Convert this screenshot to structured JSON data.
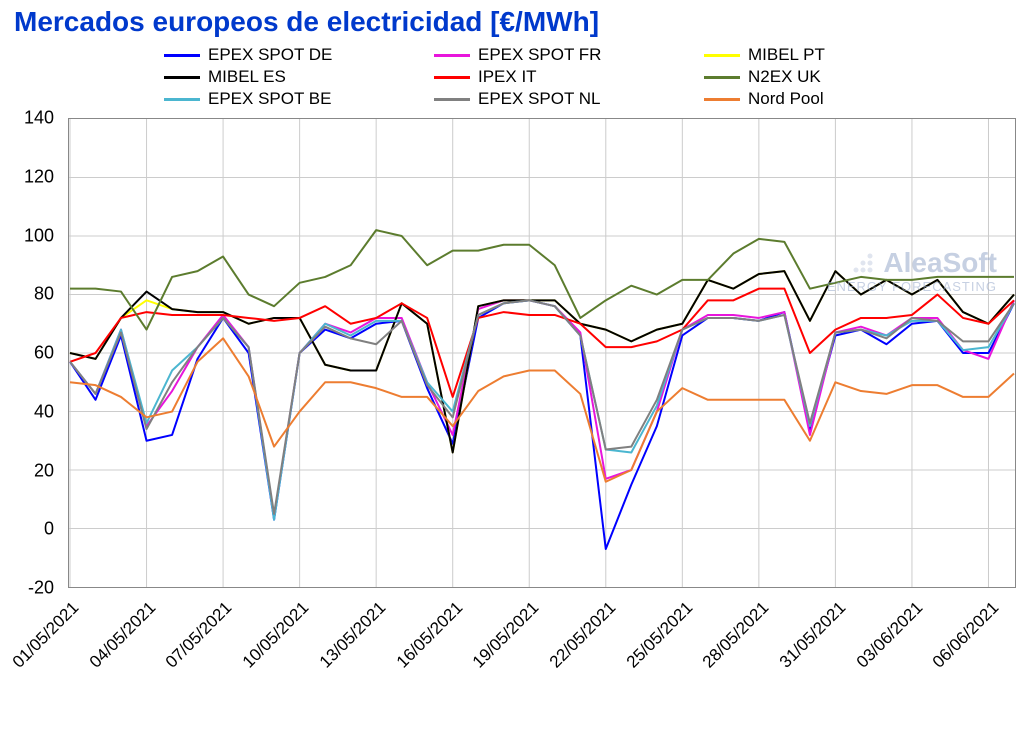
{
  "title": "Mercados europeos de electricidad [€/MWh]",
  "chart": {
    "type": "line",
    "background_color": "#ffffff",
    "grid_color": "#cccccc",
    "border_color": "#888888",
    "title_color": "#0039cc",
    "title_fontsize": 28,
    "label_fontsize": 18,
    "legend_fontsize": 17,
    "line_width": 2,
    "ylim": [
      -20,
      140
    ],
    "ytick_step": 20,
    "yticks": [
      -20,
      0,
      20,
      40,
      60,
      80,
      100,
      120,
      140
    ],
    "x_dates": [
      "01/05/2021",
      "02/05/2021",
      "03/05/2021",
      "04/05/2021",
      "05/05/2021",
      "06/05/2021",
      "07/05/2021",
      "08/05/2021",
      "09/05/2021",
      "10/05/2021",
      "11/05/2021",
      "12/05/2021",
      "13/05/2021",
      "14/05/2021",
      "15/05/2021",
      "16/05/2021",
      "17/05/2021",
      "18/05/2021",
      "19/05/2021",
      "20/05/2021",
      "21/05/2021",
      "22/05/2021",
      "23/05/2021",
      "24/05/2021",
      "25/05/2021",
      "26/05/2021",
      "27/05/2021",
      "28/05/2021",
      "29/05/2021",
      "30/05/2021",
      "31/05/2021",
      "01/06/2021",
      "02/06/2021",
      "03/06/2021",
      "04/06/2021",
      "05/06/2021",
      "06/06/2021",
      "07/06/2021"
    ],
    "xticks_idx": [
      0,
      3,
      6,
      9,
      12,
      15,
      18,
      21,
      24,
      27,
      30,
      33,
      36
    ],
    "xticks_labels": [
      "01/05/2021",
      "04/05/2021",
      "07/05/2021",
      "10/05/2021",
      "13/05/2021",
      "16/05/2021",
      "19/05/2021",
      "22/05/2021",
      "25/05/2021",
      "28/05/2021",
      "31/05/2021",
      "03/06/2021",
      "06/06/2021"
    ],
    "series": [
      {
        "name": "EPEX SPOT DE",
        "color": "#0000ff",
        "values": [
          57,
          44,
          66,
          30,
          32,
          58,
          72,
          60,
          3,
          60,
          68,
          65,
          70,
          71,
          48,
          29,
          72,
          77,
          78,
          76,
          66,
          -7,
          15,
          35,
          66,
          72,
          72,
          71,
          74,
          34,
          66,
          68,
          63,
          70,
          71,
          60,
          60,
          77
        ]
      },
      {
        "name": "EPEX SPOT FR",
        "color": "#e815dc",
        "values": [
          57,
          46,
          68,
          35,
          47,
          62,
          73,
          62,
          4,
          60,
          70,
          67,
          72,
          72,
          50,
          32,
          75,
          78,
          78,
          76,
          67,
          17,
          20,
          40,
          68,
          73,
          73,
          72,
          74,
          32,
          67,
          69,
          66,
          72,
          72,
          61,
          58,
          78
        ]
      },
      {
        "name": "MIBEL PT",
        "color": "#ffff00",
        "values": [
          60,
          58,
          72,
          78,
          75,
          74,
          74,
          70,
          72,
          72,
          56,
          54,
          54,
          77,
          70,
          26,
          76,
          78,
          78,
          78,
          70,
          68,
          64,
          68,
          70,
          85,
          82,
          87,
          88,
          71,
          88,
          80,
          85,
          80,
          85,
          74,
          70,
          80
        ]
      },
      {
        "name": "MIBEL ES",
        "color": "#000000",
        "values": [
          60,
          58,
          72,
          81,
          75,
          74,
          74,
          70,
          72,
          72,
          56,
          54,
          54,
          77,
          70,
          26,
          76,
          78,
          78,
          78,
          70,
          68,
          64,
          68,
          70,
          85,
          82,
          87,
          88,
          71,
          88,
          80,
          85,
          80,
          85,
          74,
          70,
          80
        ]
      },
      {
        "name": "IPEX IT",
        "color": "#ff0000",
        "values": [
          57,
          60,
          72,
          74,
          73,
          73,
          73,
          72,
          71,
          72,
          76,
          70,
          72,
          77,
          72,
          45,
          72,
          74,
          73,
          73,
          70,
          62,
          62,
          64,
          68,
          78,
          78,
          82,
          82,
          60,
          68,
          72,
          72,
          73,
          80,
          72,
          70,
          78
        ]
      },
      {
        "name": "N2EX UK",
        "color": "#5c7c2e",
        "values": [
          82,
          82,
          81,
          68,
          86,
          88,
          93,
          80,
          76,
          84,
          86,
          90,
          102,
          100,
          90,
          95,
          95,
          97,
          97,
          90,
          72,
          78,
          83,
          80,
          85,
          85,
          94,
          99,
          98,
          82,
          84,
          86,
          85,
          85,
          86,
          86,
          86,
          86
        ]
      },
      {
        "name": "EPEX SPOT BE",
        "color": "#4bb6d0",
        "values": [
          57,
          46,
          68,
          36,
          54,
          62,
          72,
          62,
          3,
          60,
          70,
          66,
          71,
          71,
          50,
          40,
          73,
          77,
          78,
          76,
          66,
          27,
          26,
          42,
          68,
          72,
          72,
          71,
          73,
          35,
          67,
          68,
          66,
          71,
          71,
          61,
          62,
          77
        ]
      },
      {
        "name": "EPEX SPOT NL",
        "color": "#808080",
        "values": [
          57,
          46,
          67,
          34,
          50,
          62,
          72,
          62,
          5,
          60,
          69,
          65,
          63,
          71,
          49,
          38,
          73,
          77,
          78,
          76,
          66,
          27,
          28,
          44,
          68,
          72,
          72,
          71,
          73,
          36,
          67,
          68,
          65,
          72,
          71,
          64,
          64,
          77
        ]
      },
      {
        "name": "Nord Pool",
        "color": "#ed7d31",
        "values": [
          50,
          49,
          45,
          38,
          40,
          57,
          65,
          52,
          28,
          40,
          50,
          50,
          48,
          45,
          45,
          35,
          47,
          52,
          54,
          54,
          46,
          16,
          20,
          40,
          48,
          44,
          44,
          44,
          44,
          30,
          50,
          47,
          46,
          49,
          49,
          45,
          45,
          53
        ]
      }
    ]
  },
  "legend": {
    "items": [
      {
        "label": "EPEX SPOT DE",
        "color": "#0000ff"
      },
      {
        "label": "EPEX SPOT FR",
        "color": "#e815dc"
      },
      {
        "label": "MIBEL PT",
        "color": "#ffff00"
      },
      {
        "label": "MIBEL ES",
        "color": "#000000"
      },
      {
        "label": "IPEX IT",
        "color": "#ff0000"
      },
      {
        "label": "N2EX UK",
        "color": "#5c7c2e"
      },
      {
        "label": "EPEX SPOT BE",
        "color": "#4bb6d0"
      },
      {
        "label": "EPEX SPOT NL",
        "color": "#808080"
      },
      {
        "label": "Nord Pool",
        "color": "#ed7d31"
      }
    ]
  },
  "watermark": {
    "text": "AleaSoft",
    "subtext": "ENERGY FORECASTING",
    "color": "#99aacc"
  }
}
